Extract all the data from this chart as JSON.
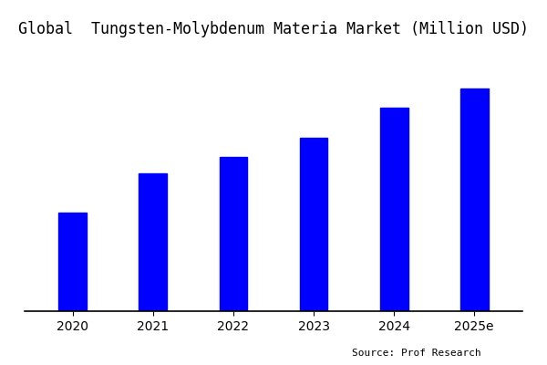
{
  "title": "Global  Tungsten-Molybdenum Materia Market (Million USD)",
  "categories": [
    "2020",
    "2021",
    "2022",
    "2023",
    "2024",
    "2025e"
  ],
  "values": [
    30,
    42,
    47,
    53,
    62,
    68
  ],
  "bar_color": "#0000FF",
  "background_color": "#ffffff",
  "plot_background_color": "#ffffff",
  "source_text": "Source: Prof Research",
  "title_fontsize": 12,
  "ylim": [
    0,
    80
  ],
  "bar_width": 0.35,
  "show_yticks": false,
  "show_grid": false
}
